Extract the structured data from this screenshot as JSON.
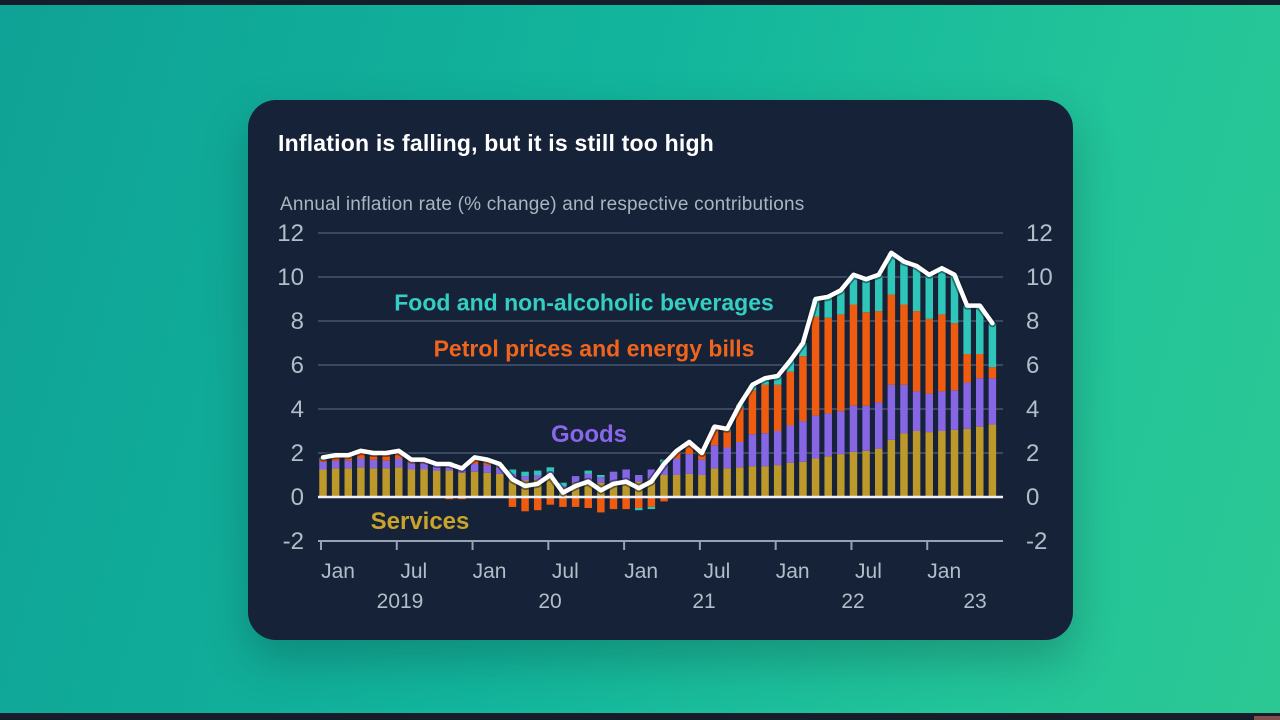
{
  "video": {
    "background_top_color": "#0fa296",
    "background_bottom_color": "#2cc894",
    "letterbox_color": "#151d2b"
  },
  "card": {
    "background_color": "#162238",
    "title": "Inflation is falling, but it is still too high",
    "subtitle": "Annual inflation rate (% change) and respective contributions"
  },
  "legend_labels": {
    "food": {
      "text": "Food and non-alcoholic beverages",
      "color": "#35cec2"
    },
    "petrol": {
      "text": "Petrol prices and energy bills",
      "color": "#f0641c"
    },
    "goods": {
      "text": "Goods",
      "color": "#8a67e8"
    },
    "services": {
      "text": "Services",
      "color": "#c9a42c"
    }
  },
  "axis": {
    "y_ticks": [
      12,
      10,
      8,
      6,
      4,
      2,
      0,
      -2
    ],
    "ylim": [
      -2,
      12
    ],
    "x_tick_labels": [
      "Jan",
      "Jul",
      "Jan",
      "Jul",
      "Jan",
      "Jul",
      "Jan",
      "Jul",
      "Jan"
    ],
    "year_labels": [
      "2019",
      "20",
      "21",
      "22",
      "23"
    ],
    "grid_color": "#46566c",
    "zero_line_color": "#eef2f6",
    "baseline_color": "#94a3b5",
    "tick_text_color": "#b2bdc9"
  },
  "chart_data": {
    "type": "bar",
    "subtype": "stacked-bars-with-line",
    "title": "Annual inflation rate (% change) and respective contributions",
    "xlabel": "",
    "ylabel": "",
    "ylim": [
      -2,
      12
    ],
    "grid": true,
    "x": [
      "2019-01",
      "2019-02",
      "2019-03",
      "2019-04",
      "2019-05",
      "2019-06",
      "2019-07",
      "2019-08",
      "2019-09",
      "2019-10",
      "2019-11",
      "2019-12",
      "2020-01",
      "2020-02",
      "2020-03",
      "2020-04",
      "2020-05",
      "2020-06",
      "2020-07",
      "2020-08",
      "2020-09",
      "2020-10",
      "2020-11",
      "2020-12",
      "2021-01",
      "2021-02",
      "2021-03",
      "2021-04",
      "2021-05",
      "2021-06",
      "2021-07",
      "2021-08",
      "2021-09",
      "2021-10",
      "2021-11",
      "2021-12",
      "2022-01",
      "2022-02",
      "2022-03",
      "2022-04",
      "2022-05",
      "2022-06",
      "2022-07",
      "2022-08",
      "2022-09",
      "2022-10",
      "2022-11",
      "2022-12",
      "2023-01",
      "2023-02",
      "2023-03",
      "2023-04",
      "2023-05",
      "2023-06"
    ],
    "series": [
      {
        "name": "Services",
        "color": "#bd982b",
        "values": [
          1.25,
          1.3,
          1.3,
          1.35,
          1.3,
          1.3,
          1.35,
          1.25,
          1.25,
          1.2,
          1.2,
          1.1,
          1.15,
          1.1,
          1.05,
          0.8,
          0.75,
          0.8,
          0.9,
          0.4,
          0.65,
          0.7,
          0.65,
          0.7,
          0.75,
          0.7,
          0.8,
          1.0,
          1.0,
          1.05,
          1.0,
          1.3,
          1.3,
          1.35,
          1.4,
          1.4,
          1.45,
          1.55,
          1.6,
          1.75,
          1.85,
          1.95,
          2.05,
          2.1,
          2.2,
          2.6,
          2.9,
          3.0,
          2.95,
          3.0,
          3.05,
          3.1,
          3.2,
          3.3
        ]
      },
      {
        "name": "Goods",
        "color": "#8666e3",
        "values": [
          0.35,
          0.35,
          0.35,
          0.4,
          0.4,
          0.35,
          0.4,
          0.3,
          0.3,
          0.25,
          0.3,
          0.2,
          0.35,
          0.35,
          0.3,
          0.25,
          0.2,
          0.2,
          0.25,
          0.1,
          0.3,
          0.35,
          0.25,
          0.45,
          0.5,
          0.3,
          0.45,
          0.55,
          0.75,
          0.9,
          0.7,
          1.05,
          0.95,
          1.15,
          1.45,
          1.5,
          1.55,
          1.7,
          1.85,
          1.95,
          1.95,
          1.95,
          2.1,
          2.05,
          2.1,
          2.5,
          2.2,
          1.8,
          1.75,
          1.8,
          1.8,
          2.1,
          2.2,
          2.1
        ]
      },
      {
        "name": "Petrol prices and energy bills",
        "color": "#ef5c10",
        "values": [
          0.1,
          0.15,
          0.15,
          0.25,
          0.2,
          0.25,
          0.25,
          0.1,
          0.1,
          -0.05,
          -0.1,
          -0.1,
          0.2,
          0.15,
          0.05,
          -0.45,
          -0.65,
          -0.6,
          -0.35,
          -0.45,
          -0.45,
          -0.5,
          -0.7,
          -0.55,
          -0.55,
          -0.5,
          -0.45,
          -0.2,
          0.3,
          0.55,
          0.35,
          0.75,
          0.75,
          1.55,
          2.0,
          2.2,
          2.1,
          2.45,
          2.95,
          4.5,
          4.35,
          4.4,
          4.6,
          4.25,
          4.15,
          4.1,
          3.65,
          3.65,
          3.4,
          3.5,
          3.05,
          1.3,
          1.1,
          0.5
        ]
      },
      {
        "name": "Food and non-alcoholic beverages",
        "color": "#2fc6b9",
        "values": [
          0.1,
          0.1,
          0.1,
          0.1,
          0.1,
          0.1,
          0.1,
          0.05,
          0.05,
          0.1,
          0.1,
          0.1,
          0.1,
          0.1,
          0.1,
          0.2,
          0.2,
          0.2,
          0.2,
          0.15,
          0.0,
          0.15,
          0.1,
          0.0,
          0.0,
          -0.1,
          -0.1,
          0.15,
          0.05,
          0.0,
          -0.05,
          0.1,
          0.1,
          0.15,
          0.25,
          0.3,
          0.4,
          0.5,
          0.6,
          0.8,
          0.95,
          1.1,
          1.35,
          1.5,
          1.65,
          1.9,
          1.95,
          2.05,
          2.0,
          2.1,
          2.2,
          2.2,
          2.2,
          2.0
        ]
      }
    ],
    "line": {
      "name": "Annual CPI inflation rate",
      "color": "#ffffff",
      "values": [
        1.8,
        1.9,
        1.9,
        2.1,
        2.0,
        2.0,
        2.1,
        1.7,
        1.7,
        1.5,
        1.5,
        1.3,
        1.8,
        1.7,
        1.5,
        0.8,
        0.5,
        0.6,
        1.0,
        0.2,
        0.5,
        0.7,
        0.3,
        0.6,
        0.7,
        0.4,
        0.7,
        1.5,
        2.1,
        2.5,
        2.0,
        3.2,
        3.1,
        4.2,
        5.1,
        5.4,
        5.5,
        6.2,
        7.0,
        9.0,
        9.1,
        9.4,
        10.1,
        9.9,
        10.1,
        11.1,
        10.7,
        10.5,
        10.1,
        10.4,
        10.1,
        8.7,
        8.7,
        7.9
      ]
    },
    "legend_position": "annotations-inside-plot"
  }
}
